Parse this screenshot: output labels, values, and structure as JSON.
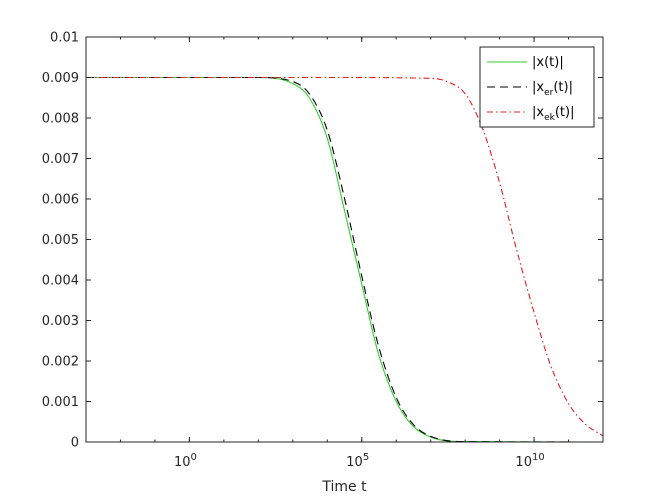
{
  "chart_data": {
    "type": "line",
    "xlabel": "Time t",
    "ylabel": "",
    "title": "",
    "x_scale": "log",
    "xlim": [
      0.001,
      1000000000000.0
    ],
    "ylim": [
      0,
      0.01
    ],
    "grid": false,
    "legend_position": "top-right",
    "x_ticks": [
      {
        "value": 1,
        "base": "10",
        "exp": "0"
      },
      {
        "value": 100000,
        "base": "10",
        "exp": "5"
      },
      {
        "value": 10000000000,
        "base": "10",
        "exp": "10"
      }
    ],
    "y_ticks": [
      {
        "value": 0,
        "label": "0"
      },
      {
        "value": 0.001,
        "label": "0.001"
      },
      {
        "value": 0.002,
        "label": "0.002"
      },
      {
        "value": 0.003,
        "label": "0.003"
      },
      {
        "value": 0.004,
        "label": "0.004"
      },
      {
        "value": 0.005,
        "label": "0.005"
      },
      {
        "value": 0.006,
        "label": "0.006"
      },
      {
        "value": 0.007,
        "label": "0.007"
      },
      {
        "value": 0.008,
        "label": "0.008"
      },
      {
        "value": 0.009,
        "label": "0.009"
      },
      {
        "value": 0.01,
        "label": "0.01"
      }
    ],
    "series": [
      {
        "name": "|x(t)|",
        "legend": {
          "pre": "|x(t)|",
          "sub": "",
          "post": ""
        },
        "color": "#33cc33",
        "dash": "",
        "points": [
          [
            0.001,
            0.009
          ],
          [
            1,
            0.009
          ],
          [
            100,
            0.009
          ],
          [
            1000,
            0.00885
          ],
          [
            3000,
            0.0085
          ],
          [
            10000,
            0.0075
          ],
          [
            30000,
            0.0058
          ],
          [
            100000,
            0.0039
          ],
          [
            300000,
            0.0022
          ],
          [
            1000000,
            0.001
          ],
          [
            3000000,
            0.0004
          ],
          [
            10000000,
            0.00012
          ],
          [
            100000000,
            1e-05
          ],
          [
            1000000000000.0,
            0
          ]
        ]
      },
      {
        "name": "|x_er(t)|",
        "legend": {
          "pre": "|x",
          "sub": "er",
          "post": "(t)|"
        },
        "color": "#000000",
        "dash": "8,5",
        "points": [
          [
            0.001,
            0.009
          ],
          [
            1,
            0.009
          ],
          [
            100,
            0.009
          ],
          [
            1000,
            0.0089
          ],
          [
            3000,
            0.0086
          ],
          [
            10000,
            0.0077
          ],
          [
            30000,
            0.0061
          ],
          [
            100000,
            0.0041
          ],
          [
            300000,
            0.0024
          ],
          [
            1000000,
            0.0011
          ],
          [
            3000000,
            0.00045
          ],
          [
            10000000,
            0.00014
          ],
          [
            100000000,
            1e-05
          ],
          [
            1000000000000.0,
            0
          ]
        ]
      },
      {
        "name": "|x_ek(t)|",
        "legend": {
          "pre": "|x",
          "sub": "ek",
          "post": "(t)|"
        },
        "color": "#dd2222",
        "dash": "6,3,1.5,3",
        "points": [
          [
            0.001,
            0.009
          ],
          [
            1,
            0.009
          ],
          [
            10000,
            0.009
          ],
          [
            10000000,
            0.00898
          ],
          [
            30000000,
            0.0089
          ],
          [
            100000000,
            0.0086
          ],
          [
            300000000,
            0.0078
          ],
          [
            1000000000,
            0.0064
          ],
          [
            3000000000,
            0.0048
          ],
          [
            10000000000,
            0.0032
          ],
          [
            30000000000,
            0.0019
          ],
          [
            100000000000,
            0.00095
          ],
          [
            300000000000,
            0.00045
          ],
          [
            1000000000000.0,
            0.00015
          ]
        ]
      }
    ]
  }
}
